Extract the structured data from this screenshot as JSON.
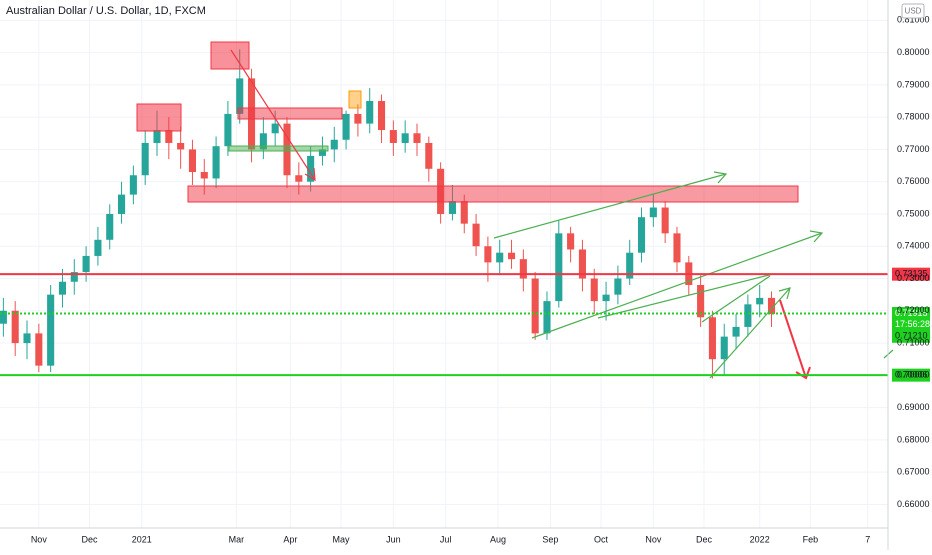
{
  "chart_data": {
    "type": "candlestick",
    "title": "Australian Dollar / U.S. Dollar, 1D, FXCM",
    "currency": "USD",
    "countdown": "17:56:28",
    "up_color": "#26a69a",
    "down_color": "#ef5350",
    "grid": true,
    "xlim": [
      8,
      534
    ],
    "ylim": [
      0.6527,
      0.8163
    ],
    "xticks": [
      {
        "value": 31,
        "label": "Nov"
      },
      {
        "value": 61,
        "label": "Dec"
      },
      {
        "value": 92,
        "label": "2021"
      },
      {
        "value": 148,
        "label": "Mar"
      },
      {
        "value": 180,
        "label": "Apr"
      },
      {
        "value": 210,
        "label": "May"
      },
      {
        "value": 241,
        "label": "Jun"
      },
      {
        "value": 272,
        "label": "Jul"
      },
      {
        "value": 303,
        "label": "Aug"
      },
      {
        "value": 334,
        "label": "Sep"
      },
      {
        "value": 364,
        "label": "Oct"
      },
      {
        "value": 395,
        "label": "Nov"
      },
      {
        "value": 425,
        "label": "Dec"
      },
      {
        "value": 458,
        "label": "2022"
      },
      {
        "value": 488,
        "label": "Feb"
      },
      {
        "value": 522,
        "label": "7"
      }
    ],
    "yticks": [
      {
        "value": 0.66,
        "label": "0.66000"
      },
      {
        "value": 0.67,
        "label": "0.67000"
      },
      {
        "value": 0.68,
        "label": "0.68000"
      },
      {
        "value": 0.69,
        "label": "0.69000"
      },
      {
        "value": 0.7,
        "label": "0.70000"
      },
      {
        "value": 0.71,
        "label": "0.71000"
      },
      {
        "value": 0.72,
        "label": "0.72000"
      },
      {
        "value": 0.73,
        "label": "0.73000"
      },
      {
        "value": 0.74,
        "label": "0.74000"
      },
      {
        "value": 0.75,
        "label": "0.75000"
      },
      {
        "value": 0.76,
        "label": "0.76000"
      },
      {
        "value": 0.77,
        "label": "0.77000"
      },
      {
        "value": 0.78,
        "label": "0.78000"
      },
      {
        "value": 0.79,
        "label": "0.79000"
      },
      {
        "value": 0.8,
        "label": "0.80000"
      },
      {
        "value": 0.81,
        "label": "0.81000"
      }
    ],
    "levels": [
      {
        "value": 0.73135,
        "label": "0.73135",
        "color": "#f23645",
        "style": "solid"
      },
      {
        "value": 0.71915,
        "label": "0.71915",
        "color": "#1fd11f",
        "style": "dotted"
      },
      {
        "value": 0.7121,
        "label": "0.71210",
        "color": "#1fd11f",
        "style": "none"
      },
      {
        "value": 0.70006,
        "label": "0.70006",
        "color": "#1fd11f",
        "style": "solid"
      }
    ],
    "x": [
      10,
      17,
      24,
      31,
      38,
      45,
      52,
      59,
      66,
      73,
      80,
      87,
      94,
      101,
      108,
      115,
      122,
      129,
      136,
      143,
      150,
      157,
      164,
      171,
      178,
      185,
      192,
      199,
      206,
      213,
      220,
      227,
      234,
      241,
      248,
      255,
      262,
      269,
      276,
      283,
      290,
      297,
      304,
      311,
      318,
      325,
      332,
      339,
      346,
      353,
      360,
      367,
      374,
      381,
      388,
      395,
      402,
      409,
      416,
      423,
      430,
      437,
      444,
      451,
      458,
      465
    ],
    "open": [
      0.716,
      0.72,
      0.71,
      0.713,
      0.703,
      0.725,
      0.729,
      0.732,
      0.737,
      0.742,
      0.75,
      0.756,
      0.762,
      0.772,
      0.776,
      0.772,
      0.77,
      0.763,
      0.761,
      0.771,
      0.781,
      0.792,
      0.77,
      0.775,
      0.778,
      0.762,
      0.76,
      0.768,
      0.77,
      0.773,
      0.781,
      0.778,
      0.785,
      0.776,
      0.772,
      0.775,
      0.772,
      0.764,
      0.75,
      0.754,
      0.747,
      0.74,
      0.735,
      0.738,
      0.736,
      0.73,
      0.713,
      0.723,
      0.744,
      0.739,
      0.73,
      0.723,
      0.725,
      0.73,
      0.738,
      0.749,
      0.752,
      0.744,
      0.735,
      0.728,
      0.718,
      0.705,
      0.712,
      0.715,
      0.722,
      0.724
    ],
    "high": [
      0.724,
      0.723,
      0.717,
      0.716,
      0.728,
      0.733,
      0.736,
      0.74,
      0.746,
      0.753,
      0.76,
      0.765,
      0.776,
      0.782,
      0.78,
      0.777,
      0.773,
      0.767,
      0.774,
      0.785,
      0.801,
      0.795,
      0.78,
      0.782,
      0.78,
      0.766,
      0.771,
      0.774,
      0.777,
      0.782,
      0.784,
      0.789,
      0.787,
      0.779,
      0.779,
      0.778,
      0.774,
      0.766,
      0.759,
      0.756,
      0.75,
      0.743,
      0.742,
      0.742,
      0.739,
      0.732,
      0.726,
      0.748,
      0.746,
      0.742,
      0.733,
      0.729,
      0.734,
      0.742,
      0.752,
      0.756,
      0.754,
      0.746,
      0.737,
      0.731,
      0.72,
      0.716,
      0.719,
      0.725,
      0.728,
      0.726
    ],
    "low": [
      0.712,
      0.706,
      0.705,
      0.701,
      0.701,
      0.721,
      0.725,
      0.729,
      0.734,
      0.739,
      0.747,
      0.753,
      0.759,
      0.768,
      0.767,
      0.764,
      0.759,
      0.756,
      0.758,
      0.768,
      0.778,
      0.766,
      0.767,
      0.771,
      0.758,
      0.756,
      0.757,
      0.765,
      0.766,
      0.77,
      0.774,
      0.775,
      0.772,
      0.768,
      0.769,
      0.768,
      0.76,
      0.747,
      0.748,
      0.744,
      0.737,
      0.729,
      0.731,
      0.733,
      0.726,
      0.711,
      0.711,
      0.721,
      0.735,
      0.726,
      0.719,
      0.717,
      0.722,
      0.728,
      0.735,
      0.746,
      0.741,
      0.732,
      0.725,
      0.715,
      0.699,
      0.7,
      0.708,
      0.712,
      0.718,
      0.715
    ],
    "close": [
      0.72,
      0.71,
      0.713,
      0.703,
      0.725,
      0.729,
      0.732,
      0.737,
      0.742,
      0.75,
      0.756,
      0.762,
      0.772,
      0.776,
      0.772,
      0.77,
      0.763,
      0.761,
      0.771,
      0.781,
      0.792,
      0.77,
      0.775,
      0.778,
      0.762,
      0.76,
      0.768,
      0.77,
      0.773,
      0.781,
      0.778,
      0.785,
      0.776,
      0.772,
      0.775,
      0.772,
      0.764,
      0.75,
      0.754,
      0.747,
      0.74,
      0.735,
      0.738,
      0.736,
      0.73,
      0.713,
      0.723,
      0.744,
      0.739,
      0.73,
      0.723,
      0.725,
      0.73,
      0.738,
      0.749,
      0.752,
      0.744,
      0.735,
      0.728,
      0.718,
      0.705,
      0.712,
      0.715,
      0.722,
      0.724,
      0.719
    ]
  }
}
